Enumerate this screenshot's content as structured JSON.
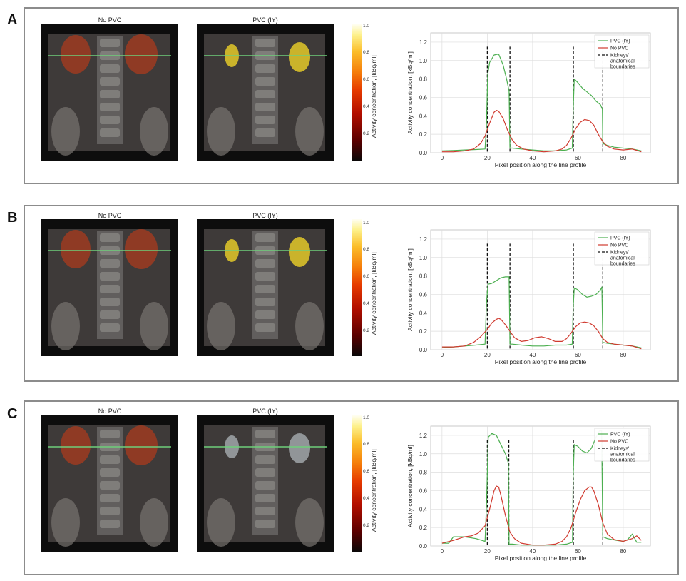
{
  "panels": [
    {
      "letter": "A",
      "left_title": "No PVC",
      "right_title": "PVC (IY)",
      "colorbar_label": "Activity concentration, [kBq/ml]",
      "colorbar_ticks": [
        "1.0",
        "0.8",
        "0.6",
        "0.4",
        "0.2"
      ],
      "right_fill": "yellow"
    },
    {
      "letter": "B",
      "left_title": "No PVC",
      "right_title": "PVC (IY)",
      "colorbar_label": "Activity concentration, [kBq/ml]",
      "colorbar_ticks": [
        "1.0",
        "0.8",
        "0.6",
        "0.4",
        "0.2"
      ],
      "right_fill": "yellow"
    },
    {
      "letter": "C",
      "left_title": "No PVC",
      "right_title": "PVC (IY)",
      "colorbar_label": "Activity concentration, [kBq/ml]",
      "colorbar_ticks": [
        "1.0",
        "0.8",
        "0.6",
        "0.4",
        "0.2"
      ],
      "right_fill": "gray"
    }
  ],
  "colors": {
    "pvc": "#4caf50",
    "nopvc": "#d03a2f",
    "boundary": "#111111",
    "grid": "#dddddd",
    "profile_line": "#6fd07a"
  },
  "chart_data": [
    {
      "type": "line",
      "xlabel": "Pixel position along the line profile",
      "ylabel": "Activity concentration, [kBq/ml]",
      "xlim": [
        -5,
        92
      ],
      "ylim": [
        0,
        1.3
      ],
      "xticks": [
        "0",
        "20",
        "40",
        "60",
        "80"
      ],
      "yticks": [
        "0.0",
        "0.2",
        "0.4",
        "0.6",
        "0.8",
        "1.0",
        "1.2"
      ],
      "legend": [
        "PVC (IY)",
        "No PVC",
        "Kidneys' anatomical boundaries"
      ],
      "legend_position": "top-right",
      "boundaries": [
        20,
        30,
        58,
        71
      ],
      "boundary_top": 1.15,
      "series": [
        {
          "name": "PVC (IY)",
          "x": [
            0,
            5,
            10,
            15,
            19,
            19.6,
            20.2,
            21,
            23,
            25,
            27,
            28.5,
            29.6,
            30,
            31,
            35,
            40,
            45,
            50,
            55,
            57.5,
            57.9,
            58.4,
            60,
            62,
            64,
            66,
            68,
            70,
            70.8,
            71,
            73,
            76,
            80,
            84,
            88
          ],
          "y": [
            0.02,
            0.025,
            0.03,
            0.035,
            0.04,
            0.3,
            0.85,
            0.98,
            1.06,
            1.07,
            0.95,
            0.8,
            0.67,
            0.05,
            0.05,
            0.04,
            0.03,
            0.02,
            0.02,
            0.03,
            0.05,
            0.45,
            0.8,
            0.76,
            0.7,
            0.66,
            0.62,
            0.56,
            0.52,
            0.47,
            0.1,
            0.08,
            0.06,
            0.05,
            0.04,
            0.02
          ]
        },
        {
          "name": "No PVC",
          "x": [
            0,
            5,
            10,
            14,
            17,
            19,
            21,
            23,
            24,
            25,
            27,
            29,
            31,
            33,
            36,
            40,
            45,
            50,
            53,
            55,
            57,
            59,
            61,
            63,
            65,
            67,
            69,
            71,
            73,
            76,
            80,
            84,
            88
          ],
          "y": [
            0.01,
            0.01,
            0.02,
            0.04,
            0.1,
            0.18,
            0.32,
            0.44,
            0.46,
            0.45,
            0.37,
            0.24,
            0.14,
            0.08,
            0.04,
            0.02,
            0.01,
            0.02,
            0.04,
            0.08,
            0.16,
            0.26,
            0.33,
            0.36,
            0.35,
            0.3,
            0.2,
            0.12,
            0.07,
            0.04,
            0.03,
            0.04,
            0.01
          ]
        }
      ]
    },
    {
      "type": "line",
      "xlabel": "Pixel position along the line profile",
      "ylabel": "Activity concentration, [kBq/ml]",
      "xlim": [
        -5,
        92
      ],
      "ylim": [
        0,
        1.3
      ],
      "xticks": [
        "0",
        "20",
        "40",
        "60",
        "80"
      ],
      "yticks": [
        "0.0",
        "0.2",
        "0.4",
        "0.6",
        "0.8",
        "1.0",
        "1.2"
      ],
      "legend": [
        "PVC (IY)",
        "No PVC",
        "Kidneys' anatomical boundaries"
      ],
      "legend_position": "top-right",
      "boundaries": [
        20,
        30,
        58,
        71
      ],
      "boundary_top": 1.15,
      "series": [
        {
          "name": "PVC (IY)",
          "x": [
            0,
            5,
            10,
            15,
            19,
            19.6,
            20.3,
            22,
            24,
            26,
            28,
            29.6,
            30,
            31,
            35,
            40,
            45,
            50,
            55,
            57.5,
            57.9,
            58.4,
            60,
            62,
            64,
            66,
            68,
            70,
            70.6,
            71,
            73,
            76,
            80,
            84,
            88
          ],
          "y": [
            0.02,
            0.03,
            0.04,
            0.05,
            0.06,
            0.5,
            0.71,
            0.72,
            0.75,
            0.78,
            0.79,
            0.79,
            0.06,
            0.06,
            0.05,
            0.04,
            0.04,
            0.05,
            0.05,
            0.06,
            0.45,
            0.67,
            0.65,
            0.6,
            0.57,
            0.58,
            0.6,
            0.65,
            0.68,
            0.08,
            0.07,
            0.06,
            0.05,
            0.04,
            0.02
          ]
        },
        {
          "name": "No PVC",
          "x": [
            0,
            5,
            10,
            14,
            17,
            20,
            22,
            24,
            25,
            26,
            28,
            30,
            32,
            35,
            38,
            41,
            44,
            47,
            50,
            53,
            55,
            57,
            59,
            61,
            63,
            65,
            67,
            69,
            71,
            73,
            76,
            80,
            84,
            88
          ],
          "y": [
            0.03,
            0.03,
            0.04,
            0.08,
            0.14,
            0.22,
            0.29,
            0.33,
            0.34,
            0.33,
            0.27,
            0.2,
            0.13,
            0.09,
            0.1,
            0.13,
            0.14,
            0.12,
            0.09,
            0.09,
            0.12,
            0.18,
            0.25,
            0.29,
            0.3,
            0.29,
            0.26,
            0.2,
            0.12,
            0.08,
            0.06,
            0.05,
            0.04,
            0.01
          ]
        }
      ]
    },
    {
      "type": "line",
      "xlabel": "Pixel position along the line profile",
      "ylabel": "Activity concentration, [kBq/ml]",
      "xlim": [
        -5,
        92
      ],
      "ylim": [
        0,
        1.3
      ],
      "xticks": [
        "0",
        "20",
        "40",
        "60",
        "80"
      ],
      "yticks": [
        "0.0",
        "0.2",
        "0.4",
        "0.6",
        "0.8",
        "1.0",
        "1.2"
      ],
      "legend": [
        "PVC (IY)",
        "No PVC",
        "Kidneys' anatomical boundaries"
      ],
      "legend_position": "top-right",
      "boundaries": [
        20,
        29.5,
        58,
        71
      ],
      "boundary_top": 1.15,
      "series": [
        {
          "name": "PVC (IY)",
          "x": [
            0,
            3,
            5,
            10,
            15,
            19,
            19.7,
            20.4,
            22,
            24,
            26,
            28,
            29.3,
            29.6,
            31,
            35,
            40,
            45,
            50,
            55,
            57.6,
            57.9,
            58.4,
            60,
            62,
            64,
            66,
            68,
            69.5,
            70.5,
            71,
            73,
            77,
            80,
            82,
            84,
            86,
            88
          ],
          "y": [
            0.03,
            0.03,
            0.1,
            0.1,
            0.08,
            0.05,
            0.5,
            1.18,
            1.22,
            1.2,
            1.1,
            1.0,
            0.9,
            0.02,
            0.02,
            0.01,
            0.01,
            0.01,
            0.01,
            0.02,
            0.04,
            0.75,
            1.1,
            1.08,
            1.03,
            1.01,
            1.06,
            1.18,
            1.25,
            1.25,
            0.1,
            0.08,
            0.06,
            0.05,
            0.07,
            0.13,
            0.04,
            0.04
          ]
        },
        {
          "name": "No PVC",
          "x": [
            0,
            5,
            10,
            13,
            16,
            19,
            21,
            23,
            24,
            25,
            26,
            28,
            30,
            32,
            35,
            40,
            45,
            50,
            53,
            55,
            57,
            59,
            61,
            63,
            65,
            66,
            67,
            69,
            71,
            73,
            76,
            80,
            84,
            86,
            88
          ],
          "y": [
            0.03,
            0.06,
            0.1,
            0.11,
            0.14,
            0.22,
            0.4,
            0.6,
            0.65,
            0.64,
            0.55,
            0.33,
            0.15,
            0.08,
            0.03,
            0.01,
            0.01,
            0.02,
            0.05,
            0.1,
            0.2,
            0.36,
            0.5,
            0.6,
            0.64,
            0.64,
            0.6,
            0.45,
            0.25,
            0.13,
            0.07,
            0.05,
            0.08,
            0.11,
            0.06
          ]
        }
      ]
    }
  ]
}
